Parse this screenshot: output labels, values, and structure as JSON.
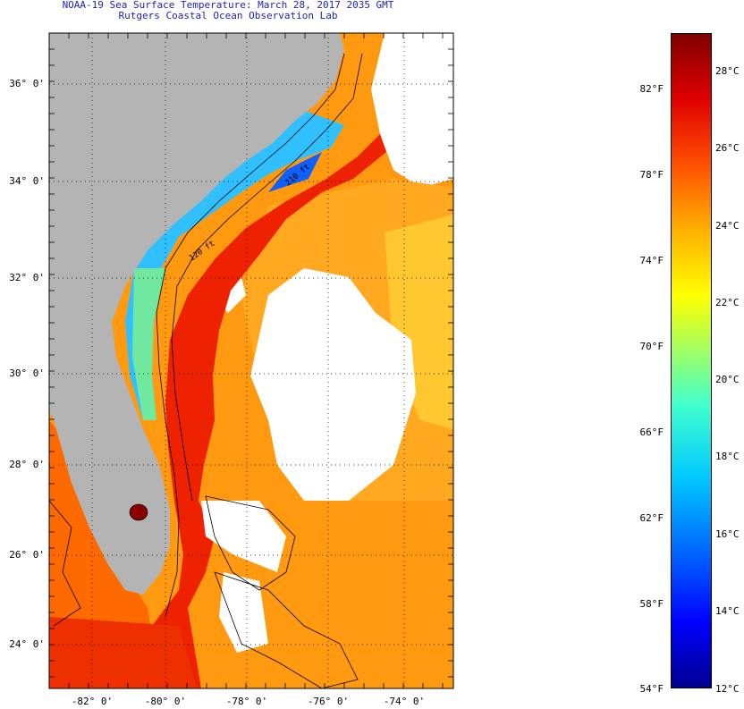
{
  "title": "NOAA-19 Sea Surface Temperature:  March 28, 2017 2035 GMT",
  "subtitle": "Rutgers Coastal Ocean Observation Lab",
  "lat_labels": [
    "36° 0'",
    "34° 0'",
    "32° 0'",
    "30° 0'",
    "28° 0'",
    "26° 0'",
    "24° 0'"
  ],
  "lon_labels": [
    "-82° 0'",
    "-80° 0'",
    "-78° 0'",
    "-76° 0'",
    "-74° 0'"
  ],
  "contour_labels": [
    "120 ft",
    "210 ft"
  ],
  "colorbar": {
    "f_labels": [
      "82°F",
      "78°F",
      "74°F",
      "70°F",
      "66°F",
      "62°F",
      "58°F",
      "54°F"
    ],
    "c_labels": [
      "28°C",
      "26°C",
      "24°C",
      "22°C",
      "20°C",
      "18°C",
      "16°C",
      "14°C",
      "12°C"
    ],
    "range_c": [
      12,
      29.5
    ],
    "colors_low_to_high": [
      "#000090",
      "#0000ff",
      "#0060ff",
      "#00c8ff",
      "#40ffd0",
      "#b0ff50",
      "#ffff00",
      "#ffb000",
      "#ff5000",
      "#e00000",
      "#800000"
    ]
  },
  "colors": {
    "land": "#b4b4b4",
    "cloud": "#ffffff",
    "gulf_stream": "#ee2200",
    "offshore": "#ff8c00",
    "shelf_cold": "#40c8ff"
  }
}
